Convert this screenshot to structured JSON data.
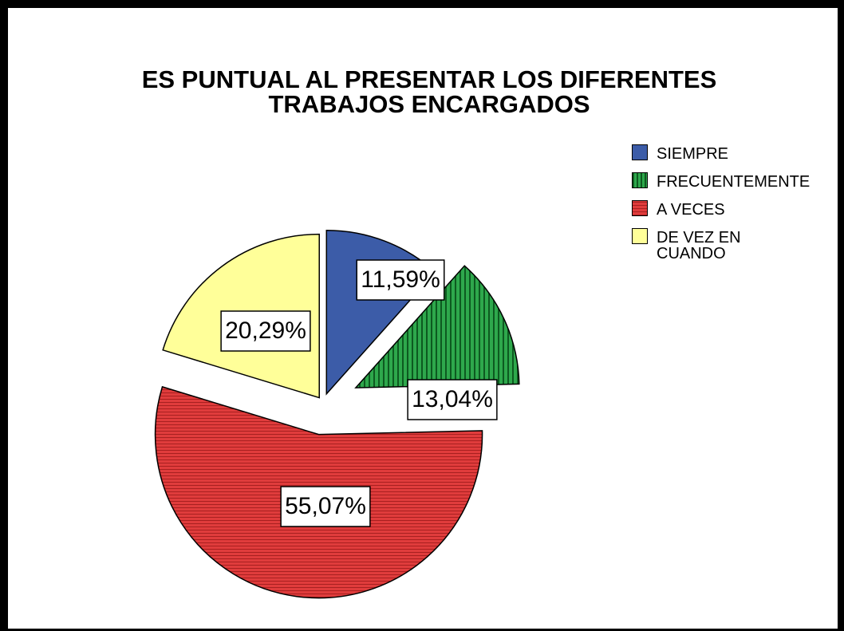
{
  "chart_data": {
    "type": "pie",
    "title": "ES PUNTUAL AL PRESENTAR LOS DIFERENTES TRABAJOS ENCARGADOS",
    "categories": [
      "SIEMPRE",
      "FRECUENTEMENTE",
      "A VECES",
      "DE VEZ EN CUANDO"
    ],
    "values": [
      11.59,
      13.04,
      55.07,
      20.29
    ],
    "value_labels": [
      "11,59%",
      "13,04%",
      "55,07%",
      "20,29%"
    ],
    "colors": [
      "#3c5ca8",
      "#2ea84c",
      "#e03c3c",
      "#ffff99"
    ],
    "legend": "top-right"
  }
}
